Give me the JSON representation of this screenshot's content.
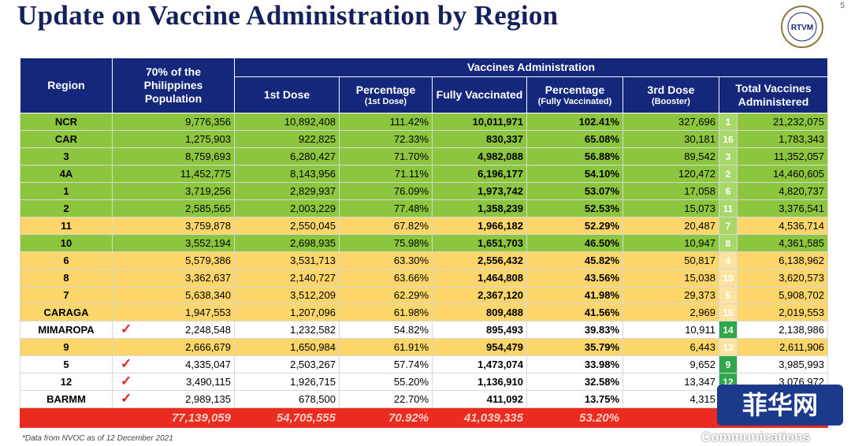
{
  "header": {
    "title": "Update on Vaccine Administration by Region",
    "page": "5",
    "logo": "RTVM"
  },
  "table": {
    "group_header": "Vaccines Administration",
    "columns": {
      "region": "Region",
      "population": "70% of the Philippines Population",
      "dose1": {
        "main": "1st Dose"
      },
      "pct1": {
        "main": "Percentage",
        "sub": "(1st Dose)"
      },
      "fully": {
        "main": "Fully Vaccinated"
      },
      "pct2": {
        "main": "Percentage",
        "sub": "(Fully Vaccinated)"
      },
      "booster": {
        "main": "3rd Dose",
        "sub": "(Booster)"
      },
      "total": {
        "main": "Total Vaccines Administered"
      }
    },
    "rows": [
      {
        "region": "NCR",
        "population": "9,776,356",
        "dose1": "10,892,408",
        "pct1": "111.42%",
        "fully": "10,011,971",
        "pct2": "102.41%",
        "booster": "327,696",
        "rank": "1",
        "total": "21,232,075",
        "color": "#8cc63f",
        "rank_color": "#a8d86a"
      },
      {
        "region": "CAR",
        "population": "1,275,903",
        "dose1": "922,825",
        "pct1": "72.33%",
        "fully": "830,337",
        "pct2": "65.08%",
        "booster": "30,181",
        "rank": "16",
        "total": "1,783,343",
        "color": "#8cc63f",
        "rank_color": "#a8d86a"
      },
      {
        "region": "3",
        "population": "8,759,693",
        "dose1": "6,280,427",
        "pct1": "71.70%",
        "fully": "4,982,088",
        "pct2": "56.88%",
        "booster": "89,542",
        "rank": "3",
        "total": "11,352,057",
        "color": "#8cc63f",
        "rank_color": "#a8d86a"
      },
      {
        "region": "4A",
        "population": "11,452,775",
        "dose1": "8,143,956",
        "pct1": "71.11%",
        "fully": "6,196,177",
        "pct2": "54.10%",
        "booster": "120,472",
        "rank": "2",
        "total": "14,460,605",
        "color": "#8cc63f",
        "rank_color": "#a8d86a"
      },
      {
        "region": "1",
        "population": "3,719,256",
        "dose1": "2,829,937",
        "pct1": "76.09%",
        "fully": "1,973,742",
        "pct2": "53.07%",
        "booster": "17,058",
        "rank": "6",
        "total": "4,820,737",
        "color": "#8cc63f",
        "rank_color": "#a8d86a"
      },
      {
        "region": "2",
        "population": "2,585,565",
        "dose1": "2,003,229",
        "pct1": "77.48%",
        "fully": "1,358,239",
        "pct2": "52.53%",
        "booster": "15,073",
        "rank": "11",
        "total": "3,376,541",
        "color": "#8cc63f",
        "rank_color": "#a8d86a"
      },
      {
        "region": "11",
        "population": "3,759,878",
        "dose1": "2,550,045",
        "pct1": "67.82%",
        "fully": "1,966,182",
        "pct2": "52.29%",
        "booster": "20,487",
        "rank": "7",
        "total": "4,536,714",
        "color": "#fcd56b",
        "rank_color": "#a8d86a"
      },
      {
        "region": "10",
        "population": "3,552,194",
        "dose1": "2,698,935",
        "pct1": "75.98%",
        "fully": "1,651,703",
        "pct2": "46.50%",
        "booster": "10,947",
        "rank": "8",
        "total": "4,361,585",
        "color": "#8cc63f",
        "rank_color": "#a8d86a"
      },
      {
        "region": "6",
        "population": "5,579,386",
        "dose1": "3,531,713",
        "pct1": "63.30%",
        "fully": "2,556,432",
        "pct2": "45.82%",
        "booster": "50,817",
        "rank": "4",
        "total": "6,138,962",
        "color": "#fcd56b",
        "rank_color": "#fde3a0"
      },
      {
        "region": "8",
        "population": "3,362,637",
        "dose1": "2,140,727",
        "pct1": "63.66%",
        "fully": "1,464,808",
        "pct2": "43.56%",
        "booster": "15,038",
        "rank": "10",
        "total": "3,620,573",
        "color": "#fcd56b",
        "rank_color": "#fde3a0"
      },
      {
        "region": "7",
        "population": "5,638,340",
        "dose1": "3,512,209",
        "pct1": "62.29%",
        "fully": "2,367,120",
        "pct2": "41.98%",
        "booster": "29,373",
        "rank": "5",
        "total": "5,908,702",
        "color": "#fcd56b",
        "rank_color": "#fde3a0"
      },
      {
        "region": "CARAGA",
        "population": "1,947,553",
        "dose1": "1,207,096",
        "pct1": "61.98%",
        "fully": "809,488",
        "pct2": "41.56%",
        "booster": "2,969",
        "rank": "15",
        "total": "2,019,553",
        "color": "#fcd56b",
        "rank_color": "#fde3a0"
      },
      {
        "region": "MIMAROPA",
        "check": "✓",
        "population": "2,248,548",
        "dose1": "1,232,582",
        "pct1": "54.82%",
        "fully": "895,493",
        "pct2": "39.83%",
        "booster": "10,911",
        "rank": "14",
        "total": "2,138,986",
        "color": "#ffffff",
        "rank_color": "#2ea84a"
      },
      {
        "region": "9",
        "population": "2,666,679",
        "dose1": "1,650,984",
        "pct1": "61.91%",
        "fully": "954,479",
        "pct2": "35.79%",
        "booster": "6,443",
        "rank": "13",
        "total": "2,611,906",
        "color": "#fcd56b",
        "rank_color": "#fde3a0"
      },
      {
        "region": "5",
        "check": "✓",
        "population": "4,335,047",
        "dose1": "2,503,267",
        "pct1": "57.74%",
        "fully": "1,473,074",
        "pct2": "33.98%",
        "booster": "9,652",
        "rank": "9",
        "total": "3,985,993",
        "color": "#ffffff",
        "rank_color": "#2ea84a"
      },
      {
        "region": "12",
        "check": "✓",
        "population": "3,490,115",
        "dose1": "1,926,715",
        "pct1": "55.20%",
        "fully": "1,136,910",
        "pct2": "32.58%",
        "booster": "13,347",
        "rank": "12",
        "total": "3,076,972",
        "color": "#ffffff",
        "rank_color": "#2ea84a"
      },
      {
        "region": "BARMM",
        "check": "✓",
        "population": "2,989,135",
        "dose1": "678,500",
        "pct1": "22.70%",
        "fully": "411,092",
        "pct2": "13.75%",
        "booster": "4,315",
        "color": "#ffffff",
        "rank_color": "#2ea84a"
      }
    ],
    "total": {
      "population": "77,139,059",
      "dose1": "54,705,555",
      "pct1": "70.92%",
      "fully": "41,039,335",
      "pct2": "53.20%"
    }
  },
  "footnote": "*Data from NVOC as of 12 December 2021",
  "watermark": "菲华网",
  "watermark_sub": "Communications"
}
